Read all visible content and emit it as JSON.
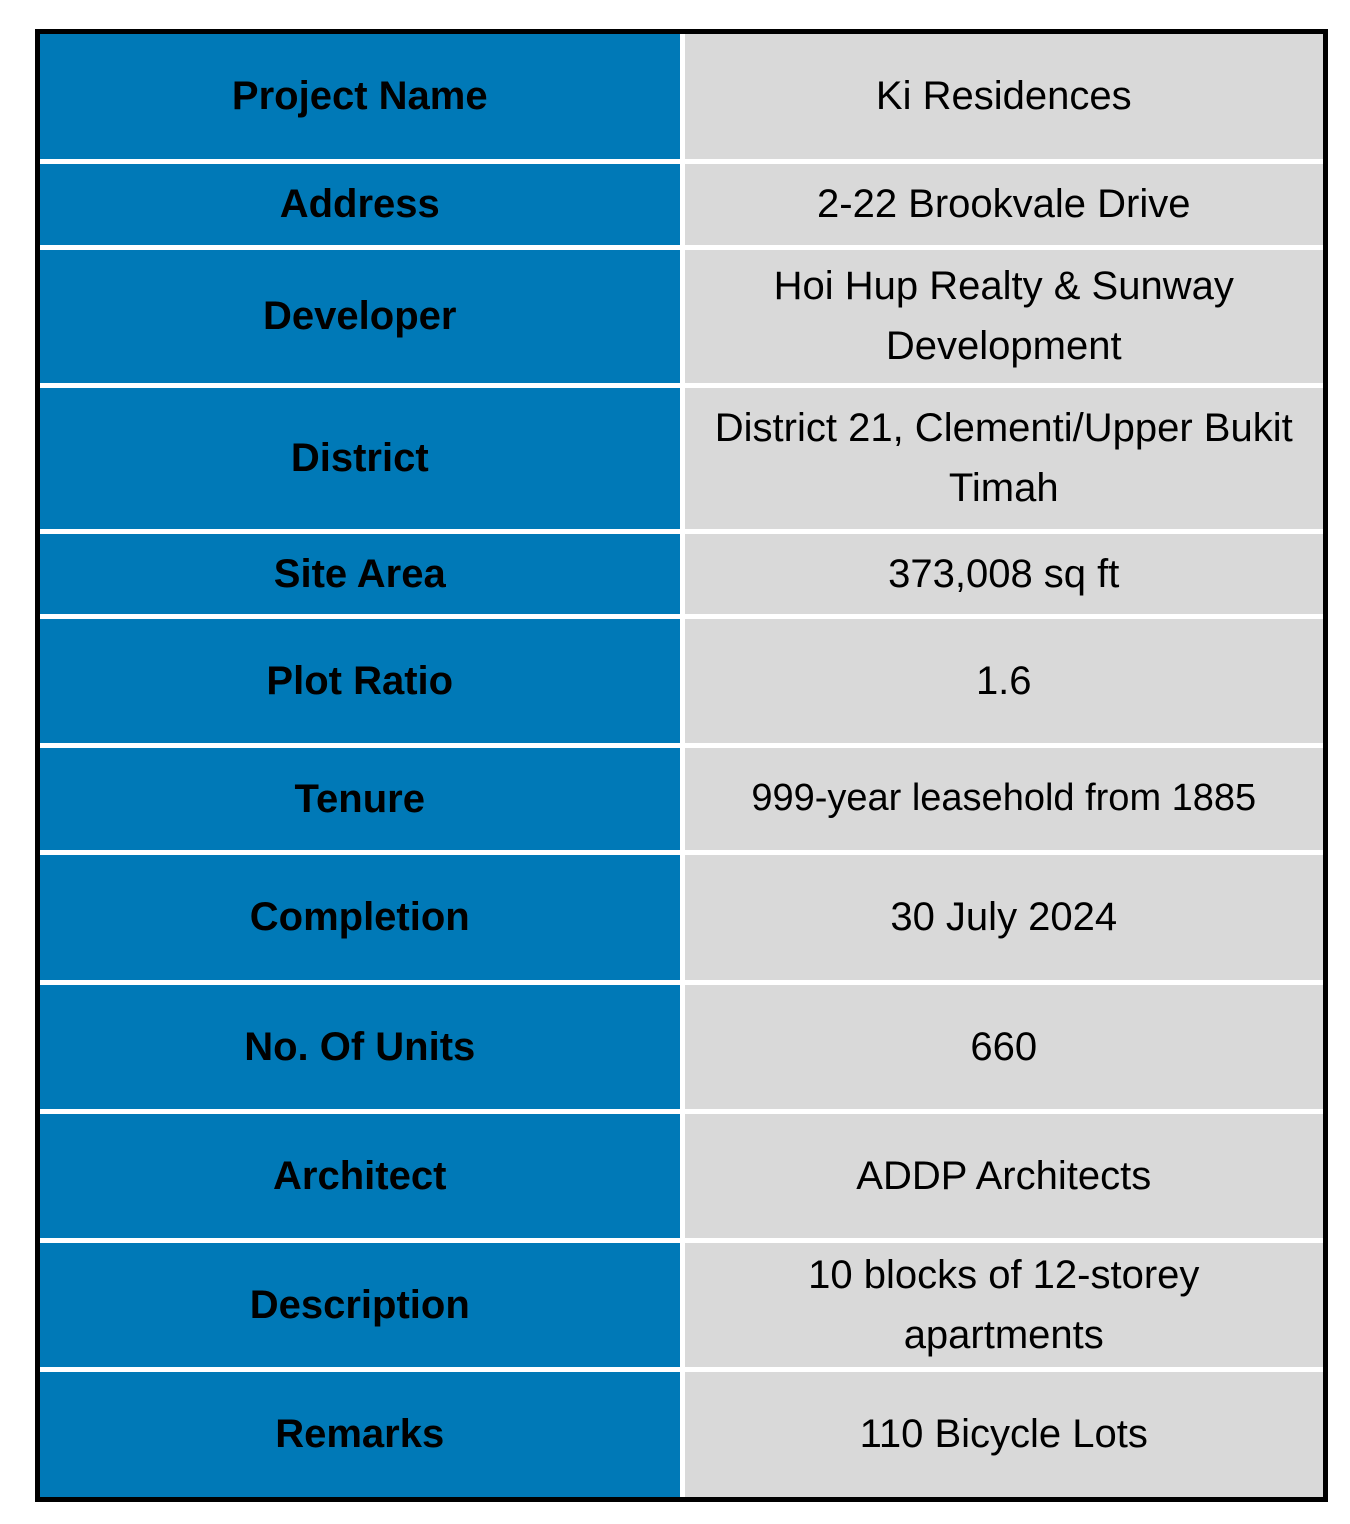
{
  "colors": {
    "label_bg": "#0079b7",
    "value_bg": "#d9d9d9",
    "border": "#000000",
    "grid": "#ffffff"
  },
  "rows": [
    {
      "label": "Project Name",
      "value": "Ki Residences"
    },
    {
      "label": "Address",
      "value": "2-22 Brookvale Drive"
    },
    {
      "label": "Developer",
      "value": "Hoi Hup Realty & Sunway Development"
    },
    {
      "label": "District",
      "value": "District 21, Clementi/Upper Bukit Timah"
    },
    {
      "label": "Site Area",
      "value": "373,008 sq ft"
    },
    {
      "label": "Plot Ratio",
      "value": "1.6"
    },
    {
      "label": "Tenure",
      "value": "999-year leasehold from 1885"
    },
    {
      "label": "Completion",
      "value": "30 July 2024"
    },
    {
      "label": "No. Of Units",
      "value": "660"
    },
    {
      "label": "Architect",
      "value": "ADDP Architects"
    },
    {
      "label": "Description",
      "value": "10 blocks of 12-storey apartments"
    },
    {
      "label": "Remarks",
      "value": "110 Bicycle Lots"
    }
  ]
}
